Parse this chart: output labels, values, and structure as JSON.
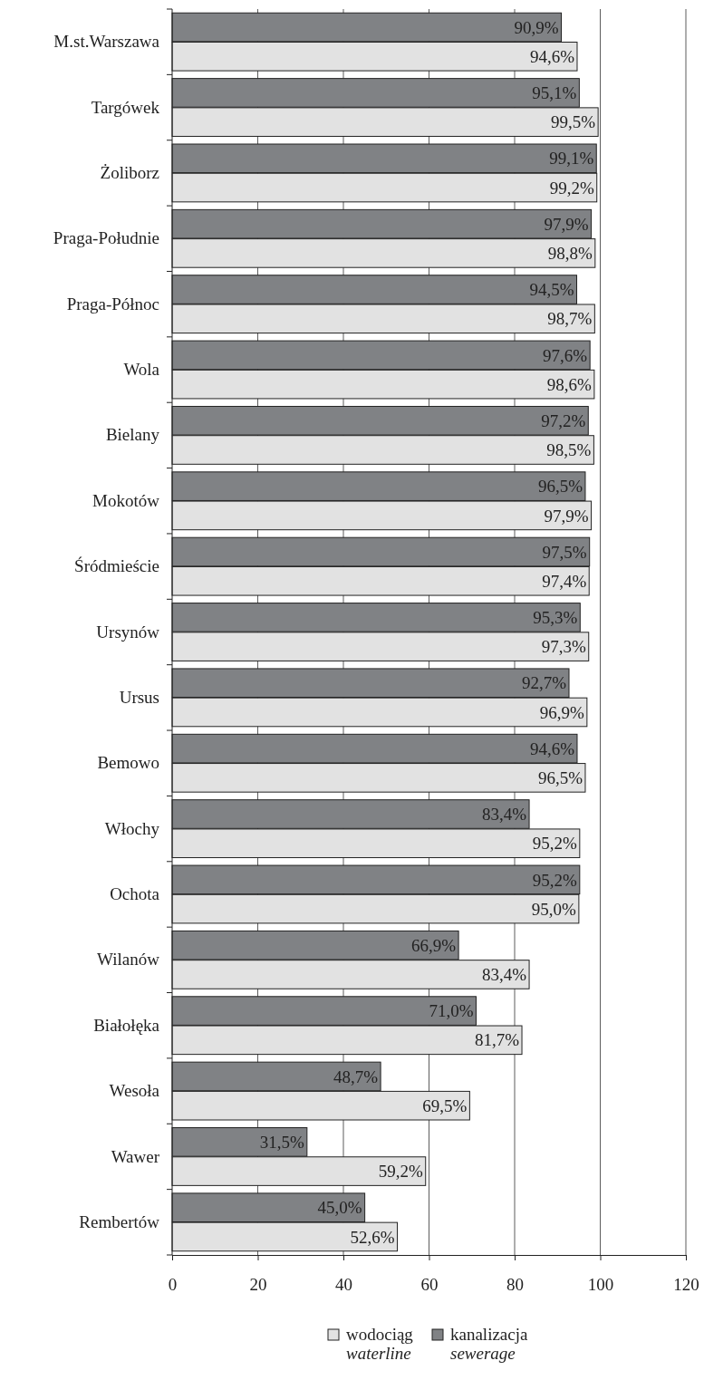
{
  "chart_data": {
    "type": "bar",
    "orientation": "horizontal",
    "categories": [
      "M.st.Warszawa",
      "Targówek",
      "Żoliborz",
      "Praga-Południe",
      "Praga-Północ",
      "Wola",
      "Bielany",
      "Mokotów",
      "Śródmieście",
      "Ursynów",
      "Ursus",
      "Bemowo",
      "Włochy",
      "Ochota",
      "Wilanów",
      "Białołęka",
      "Wesoła",
      "Wawer",
      "Rembertów"
    ],
    "series": [
      {
        "name": "kanalizacja\nsewerage",
        "color": "#808285",
        "values": [
          90.9,
          95.1,
          99.1,
          97.9,
          94.5,
          97.6,
          97.2,
          96.5,
          97.5,
          95.3,
          92.7,
          94.6,
          83.4,
          95.2,
          66.9,
          71.0,
          48.7,
          31.5,
          45.0
        ],
        "value_labels": [
          "90,9%",
          "95,1%",
          "99,1%",
          "97,9%",
          "94,5%",
          "97,6%",
          "97,2%",
          "96,5%",
          "97,5%",
          "95,3%",
          "92,7%",
          "94,6%",
          "83,4%",
          "95,2%",
          "66,9%",
          "71,0%",
          "48,7%",
          "31,5%",
          "45,0%"
        ]
      },
      {
        "name": "wodociąg\nwaterline",
        "color": "#e2e2e2",
        "values": [
          94.6,
          99.5,
          99.2,
          98.8,
          98.7,
          98.6,
          98.5,
          97.9,
          97.4,
          97.3,
          96.9,
          96.5,
          95.2,
          95.0,
          83.4,
          81.7,
          69.5,
          59.2,
          52.6
        ],
        "value_labels": [
          "94,6%",
          "99,5%",
          "99,2%",
          "98,8%",
          "98,7%",
          "98,6%",
          "98,5%",
          "97,9%",
          "97,4%",
          "97,3%",
          "96,9%",
          "96,5%",
          "95,2%",
          "95,0%",
          "83,4%",
          "81,7%",
          "69,5%",
          "59,2%",
          "52,6%"
        ]
      }
    ],
    "xlim": [
      0,
      120
    ],
    "xticks": [
      0,
      20,
      40,
      60,
      80,
      100,
      120
    ],
    "grid": "x",
    "legend": "bottom"
  }
}
